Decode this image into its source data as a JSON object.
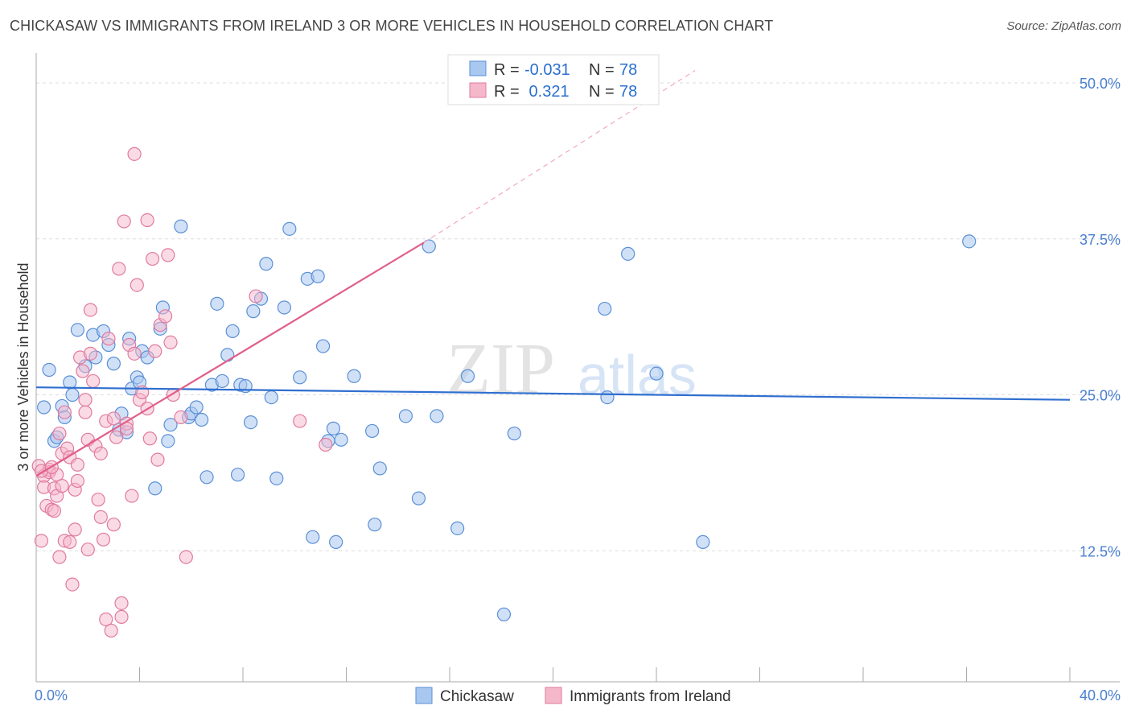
{
  "title": "CHICKASAW VS IMMIGRANTS FROM IRELAND 3 OR MORE VEHICLES IN HOUSEHOLD CORRELATION CHART",
  "source": "Source: ZipAtlas.com",
  "watermark": {
    "zip": "ZIP",
    "atlas": "atlas"
  },
  "colors": {
    "blue_fill": "#a9c8f0",
    "blue_stroke": "#5b8fd6",
    "blue_line": "#2f6fd0",
    "pink_fill": "#f5b8cb",
    "pink_stroke": "#e07aa0",
    "pink_line": "#e0608a",
    "grid": "#dddddd",
    "tick_text": "#4a7fd0"
  },
  "chart_data": {
    "type": "scatter",
    "xlabel": "",
    "ylabel": "3 or more Vehicles in Household",
    "xlim": [
      0,
      40
    ],
    "ylim": [
      2,
      52
    ],
    "x_tick_labels": [
      "0.0%",
      "40.0%"
    ],
    "y_ticks": [
      12.5,
      25.0,
      37.5,
      50.0
    ],
    "y_tick_labels": [
      "12.5%",
      "25.0%",
      "37.5%",
      "50.0%"
    ],
    "legend": [
      {
        "r_label": "R =",
        "r_value": "-0.031",
        "n_label": "N =",
        "n_value": "78"
      },
      {
        "r_label": "R =",
        "r_value": " 0.321",
        "n_label": "N =",
        "n_value": "78"
      }
    ],
    "series": [
      {
        "name": "Chickasaw",
        "trend": {
          "x": [
            0,
            40
          ],
          "y": [
            25.6,
            24.6
          ]
        },
        "points": [
          [
            0.3,
            24.0
          ],
          [
            0.5,
            27.0
          ],
          [
            0.7,
            21.3
          ],
          [
            0.8,
            21.6
          ],
          [
            1.0,
            24.1
          ],
          [
            1.1,
            23.2
          ],
          [
            1.3,
            26.0
          ],
          [
            1.4,
            25.0
          ],
          [
            1.6,
            30.2
          ],
          [
            1.9,
            27.3
          ],
          [
            2.2,
            29.8
          ],
          [
            2.3,
            28.0
          ],
          [
            2.6,
            30.1
          ],
          [
            2.8,
            29.0
          ],
          [
            3.0,
            27.5
          ],
          [
            3.2,
            22.2
          ],
          [
            3.3,
            23.5
          ],
          [
            3.5,
            22.0
          ],
          [
            3.6,
            29.5
          ],
          [
            3.7,
            25.5
          ],
          [
            3.9,
            26.4
          ],
          [
            4.0,
            26.0
          ],
          [
            4.1,
            28.5
          ],
          [
            4.3,
            28.0
          ],
          [
            4.6,
            17.5
          ],
          [
            4.8,
            30.3
          ],
          [
            4.9,
            32.0
          ],
          [
            5.1,
            21.3
          ],
          [
            5.2,
            22.6
          ],
          [
            5.6,
            38.5
          ],
          [
            5.9,
            23.2
          ],
          [
            6.0,
            23.5
          ],
          [
            6.2,
            24.0
          ],
          [
            6.4,
            23.0
          ],
          [
            6.6,
            18.4
          ],
          [
            6.8,
            25.8
          ],
          [
            7.0,
            32.3
          ],
          [
            7.2,
            26.1
          ],
          [
            7.4,
            28.2
          ],
          [
            7.6,
            30.1
          ],
          [
            7.8,
            18.6
          ],
          [
            7.9,
            25.8
          ],
          [
            8.1,
            25.7
          ],
          [
            8.3,
            22.8
          ],
          [
            8.4,
            31.7
          ],
          [
            8.7,
            32.7
          ],
          [
            8.9,
            35.5
          ],
          [
            9.1,
            24.8
          ],
          [
            9.3,
            18.3
          ],
          [
            9.6,
            32.0
          ],
          [
            9.8,
            38.3
          ],
          [
            10.2,
            26.4
          ],
          [
            10.5,
            34.3
          ],
          [
            10.7,
            13.6
          ],
          [
            10.9,
            34.5
          ],
          [
            11.1,
            28.9
          ],
          [
            11.3,
            21.3
          ],
          [
            11.5,
            22.3
          ],
          [
            11.6,
            13.2
          ],
          [
            11.8,
            21.4
          ],
          [
            12.3,
            26.5
          ],
          [
            13.0,
            22.1
          ],
          [
            13.3,
            19.1
          ],
          [
            13.1,
            14.6
          ],
          [
            14.3,
            23.3
          ],
          [
            14.8,
            16.7
          ],
          [
            15.2,
            36.9
          ],
          [
            15.5,
            23.3
          ],
          [
            16.3,
            14.3
          ],
          [
            16.7,
            26.5
          ],
          [
            18.1,
            7.4
          ],
          [
            18.5,
            21.9
          ],
          [
            22.0,
            31.9
          ],
          [
            22.1,
            24.8
          ],
          [
            22.9,
            36.3
          ],
          [
            24.0,
            26.7
          ],
          [
            25.8,
            13.2
          ],
          [
            36.1,
            37.3
          ]
        ]
      },
      {
        "name": "Immigrants from Ireland",
        "trend": {
          "x": [
            0,
            15.0
          ],
          "y": [
            18.5,
            37.2
          ]
        },
        "trend_ext": {
          "x": [
            15.0,
            25.5
          ],
          "y": [
            37.2,
            51.0
          ]
        },
        "points": [
          [
            0.1,
            19.3
          ],
          [
            0.2,
            13.3
          ],
          [
            0.3,
            18.5
          ],
          [
            0.3,
            17.6
          ],
          [
            0.4,
            16.1
          ],
          [
            0.5,
            19.0
          ],
          [
            0.5,
            18.8
          ],
          [
            0.6,
            15.8
          ],
          [
            0.7,
            15.7
          ],
          [
            0.7,
            17.5
          ],
          [
            0.8,
            18.6
          ],
          [
            0.8,
            16.9
          ],
          [
            0.9,
            12.0
          ],
          [
            1.0,
            20.3
          ],
          [
            1.1,
            23.6
          ],
          [
            1.2,
            20.7
          ],
          [
            1.1,
            13.3
          ],
          [
            1.3,
            20.0
          ],
          [
            1.3,
            13.2
          ],
          [
            1.4,
            9.8
          ],
          [
            1.5,
            17.4
          ],
          [
            1.5,
            14.2
          ],
          [
            1.6,
            19.4
          ],
          [
            1.7,
            28.0
          ],
          [
            1.8,
            26.9
          ],
          [
            1.9,
            24.6
          ],
          [
            1.9,
            23.6
          ],
          [
            2.0,
            21.4
          ],
          [
            2.1,
            28.3
          ],
          [
            2.1,
            31.8
          ],
          [
            2.2,
            26.1
          ],
          [
            2.3,
            20.9
          ],
          [
            2.4,
            16.6
          ],
          [
            2.5,
            20.3
          ],
          [
            2.5,
            15.2
          ],
          [
            2.6,
            13.4
          ],
          [
            2.7,
            22.9
          ],
          [
            2.7,
            7.0
          ],
          [
            2.8,
            29.5
          ],
          [
            2.9,
            6.1
          ],
          [
            3.0,
            23.1
          ],
          [
            3.0,
            14.6
          ],
          [
            3.1,
            21.6
          ],
          [
            3.2,
            35.1
          ],
          [
            3.3,
            8.3
          ],
          [
            3.3,
            7.2
          ],
          [
            3.4,
            38.9
          ],
          [
            3.5,
            22.7
          ],
          [
            3.5,
            22.3
          ],
          [
            3.6,
            29.0
          ],
          [
            3.7,
            16.9
          ],
          [
            3.8,
            44.3
          ],
          [
            3.8,
            28.3
          ],
          [
            3.9,
            33.8
          ],
          [
            4.0,
            24.6
          ],
          [
            4.1,
            25.2
          ],
          [
            4.3,
            39.0
          ],
          [
            4.3,
            23.9
          ],
          [
            4.4,
            21.5
          ],
          [
            4.5,
            35.9
          ],
          [
            4.6,
            28.5
          ],
          [
            4.7,
            19.8
          ],
          [
            4.8,
            30.6
          ],
          [
            5.0,
            31.3
          ],
          [
            5.1,
            36.2
          ],
          [
            5.2,
            29.2
          ],
          [
            5.3,
            25.0
          ],
          [
            5.6,
            23.2
          ],
          [
            5.8,
            12.0
          ],
          [
            8.5,
            32.9
          ],
          [
            10.2,
            22.9
          ],
          [
            11.2,
            21.0
          ],
          [
            0.2,
            18.9
          ],
          [
            0.6,
            19.2
          ],
          [
            1.0,
            17.7
          ],
          [
            1.6,
            18.1
          ],
          [
            2.0,
            12.6
          ],
          [
            0.9,
            21.9
          ]
        ]
      }
    ],
    "bottom_legend": [
      "Chickasaw",
      "Immigrants from Ireland"
    ]
  }
}
